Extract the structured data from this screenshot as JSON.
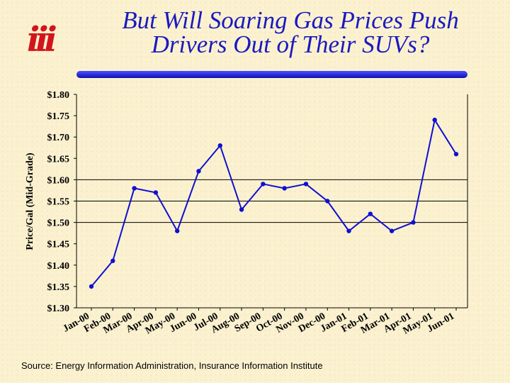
{
  "slide": {
    "title_line1": "But Will Soaring Gas Prices Push",
    "title_line2": "Drivers Out of Their SUVs?",
    "logo_text": "iii",
    "source": "Source:  Energy Information Administration, Insurance Information Institute"
  },
  "colors": {
    "title": "#1a1abf",
    "logo": "#d4141c",
    "series": "#1010d0",
    "background": "#fbf1cf"
  },
  "chart_data": {
    "type": "line",
    "title": "",
    "xlabel": "",
    "ylabel": "Price/Gal (Mid-Grade)",
    "ylim": [
      1.3,
      1.8
    ],
    "yticks": [
      1.3,
      1.35,
      1.4,
      1.45,
      1.5,
      1.55,
      1.6,
      1.65,
      1.7,
      1.75,
      1.8
    ],
    "ytick_labels": [
      "$1.30",
      "$1.35",
      "$1.40",
      "$1.45",
      "$1.50",
      "$1.55",
      "$1.60",
      "$1.65",
      "$1.70",
      "$1.75",
      "$1.80"
    ],
    "gridlines_at": [
      1.5,
      1.55,
      1.6
    ],
    "categories": [
      "Jan-00",
      "Feb-00",
      "Mar-00",
      "Apr-00",
      "May-00",
      "Jun-00",
      "Jul-00",
      "Aug-00",
      "Sep-00",
      "Oct-00",
      "Nov-00",
      "Dec-00",
      "Jan-01",
      "Feb-01",
      "Mar-01",
      "Apr-01",
      "May-01",
      "Jun-01"
    ],
    "series": [
      {
        "values": [
          1.35,
          1.41,
          1.58,
          1.57,
          1.48,
          1.62,
          1.68,
          1.53,
          1.59,
          1.58,
          1.59,
          1.55,
          1.48,
          1.52,
          1.48,
          1.5,
          1.74,
          1.66
        ]
      }
    ]
  }
}
